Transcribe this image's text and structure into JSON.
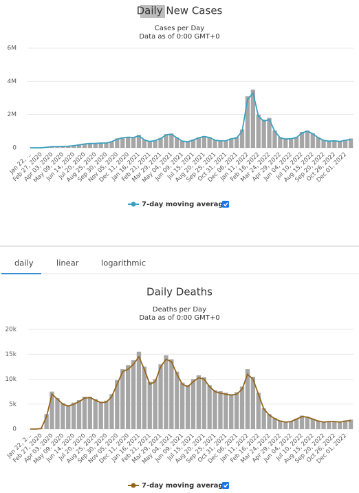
{
  "chart_data": [
    {
      "type": "bar",
      "title": "Daily New Cases",
      "subtitle": "Cases per Day",
      "note": "Data as of 0:00 GMT+0",
      "categories": [
        "Jan 22, ...",
        null,
        "Feb 27, 2020",
        null,
        "Apr 03, 2020",
        null,
        "May 09, 2020",
        null,
        "Jun 14, 2020",
        null,
        "Jul 20, 2020",
        null,
        "Aug 25, 2020",
        null,
        "Sep 30, 2020",
        null,
        "Nov 05, 2020",
        null,
        "Dec 11, 2020",
        null,
        "Jan 16, 2021",
        null,
        "Feb 21, 2021",
        null,
        "Mar 29, 2021",
        null,
        "May 04, 2021",
        null,
        "Jun 09, 2021",
        null,
        "Jul 15, 2021",
        null,
        "Aug 20, 2021",
        null,
        "Sep 25, 2021",
        null,
        "Oct 31, 2021",
        null,
        "Dec 06, 2021",
        null,
        "Jan 11, 2022",
        null,
        "Feb 16, 2022",
        null,
        "Mar 24, 2022",
        null,
        "Apr 29, 2022",
        null,
        "Jun 04, 2022",
        null,
        "Jul 10, 2022",
        null,
        "Aug 15, 2022",
        null,
        "Sep 20, 2022",
        null,
        "Oct 26, 2022",
        null,
        "Dec 01, 2022",
        null
      ],
      "values": [
        0,
        1000,
        3000,
        40000,
        80000,
        85000,
        90000,
        110000,
        140000,
        190000,
        240000,
        270000,
        270000,
        300000,
        300000,
        390000,
        560000,
        630000,
        660000,
        640000,
        780000,
        500000,
        400000,
        460000,
        590000,
        820000,
        860000,
        630000,
        420000,
        390000,
        500000,
        630000,
        700000,
        640000,
        480000,
        440000,
        450000,
        560000,
        640000,
        1100000,
        3100000,
        3500000,
        2000000,
        1700000,
        1800000,
        1050000,
        640000,
        560000,
        580000,
        650000,
        950000,
        1050000,
        880000,
        630000,
        470000,
        420000,
        440000,
        400000,
        480000,
        560000
      ],
      "color": "#a6a6a6",
      "series": [
        {
          "name": "7-day moving average",
          "color": "#3aa1c0",
          "values": [
            0,
            1000,
            2000,
            35000,
            75000,
            80000,
            85000,
            100000,
            130000,
            180000,
            230000,
            260000,
            260000,
            290000,
            290000,
            370000,
            520000,
            600000,
            640000,
            620000,
            720000,
            480000,
            380000,
            440000,
            560000,
            780000,
            820000,
            600000,
            400000,
            370000,
            470000,
            600000,
            680000,
            620000,
            460000,
            420000,
            430000,
            540000,
            600000,
            1000000,
            2900000,
            3300000,
            1900000,
            1600000,
            1700000,
            1000000,
            600000,
            530000,
            550000,
            620000,
            900000,
            1000000,
            850000,
            600000,
            450000,
            400000,
            420000,
            380000,
            460000,
            500000
          ]
        }
      ],
      "ylim": [
        0,
        6000000
      ],
      "yticks": [
        0,
        {
          "value": 2000000,
          "label": "2M"
        },
        {
          "value": 4000000,
          "label": "4M"
        },
        {
          "value": 6000000,
          "label": "6M"
        }
      ],
      "grid": true
    },
    {
      "type": "bar",
      "title": "Daily Deaths",
      "subtitle": "Deaths per Day",
      "note": "Data as of 0:00 GMT+0",
      "categories": [
        "Jan 22, 2...",
        null,
        "Feb 27, 2020",
        null,
        "Apr 03, 2020",
        null,
        "May 09, 2020",
        null,
        "Jun 14, 2020",
        null,
        "Jul 20, 2020",
        null,
        "Aug 25, 2020",
        null,
        "Sep 30, 2020",
        null,
        "Nov 05, 2020",
        null,
        "Dec 11, 2020",
        null,
        "Jan 16, 2021",
        null,
        "Feb 21, 2021",
        null,
        "Mar 29, 2021",
        null,
        "May 04, 2021",
        null,
        "Jun 09, 2021",
        null,
        "Jul 15, 2021",
        null,
        "Aug 20, 2021",
        null,
        "Sep 25, 2021",
        null,
        "Oct 31, 2021",
        null,
        "Dec 06, 2021",
        null,
        "Jan 11, 2022",
        null,
        "Feb 16, 2022",
        null,
        "Mar 24, 2022",
        null,
        "Apr 29, 2022",
        null,
        "Jun 04, 2022",
        null,
        "Jul 10, 2022",
        null,
        "Aug 15, 2022",
        null,
        "Sep 20, 2022",
        null,
        "Oct 26, 2022",
        null,
        "Dec 01, 2022",
        null
      ],
      "values": [
        0,
        0,
        150,
        3000,
        7500,
        6200,
        5200,
        4800,
        5300,
        5800,
        6500,
        6500,
        6000,
        5500,
        5700,
        7000,
        9800,
        12000,
        12800,
        13800,
        15500,
        12500,
        9500,
        10000,
        13000,
        14800,
        14000,
        11500,
        9300,
        8800,
        10000,
        10800,
        10400,
        8800,
        7800,
        7600,
        7300,
        7000,
        7400,
        8500,
        12000,
        10500,
        7300,
        4200,
        3000,
        2200,
        1700,
        1500,
        1600,
        2100,
        2700,
        2500,
        2100,
        1700,
        1500,
        1600,
        1600,
        1500,
        1700,
        1900
      ],
      "color": "#a6a6a6",
      "series": [
        {
          "name": "7-day moving average",
          "color": "#94661a",
          "values": [
            0,
            0,
            100,
            2500,
            7000,
            6000,
            5000,
            4600,
            5000,
            5500,
            6200,
            6300,
            5800,
            5300,
            5400,
            6500,
            9000,
            11500,
            12000,
            13000,
            14500,
            12000,
            9000,
            9500,
            12500,
            14000,
            13500,
            11000,
            9000,
            8500,
            9500,
            10300,
            10000,
            8500,
            7500,
            7200,
            7000,
            6800,
            7000,
            8000,
            11000,
            10000,
            7000,
            4000,
            2800,
            2100,
            1600,
            1400,
            1500,
            2000,
            2500,
            2400,
            2000,
            1600,
            1400,
            1500,
            1500,
            1400,
            1600,
            1700
          ]
        }
      ],
      "ylim": [
        0,
        20000
      ],
      "yticks": [
        0,
        {
          "value": 5000,
          "label": "5k"
        },
        {
          "value": 10000,
          "label": "10k"
        },
        {
          "value": 15000,
          "label": "15k"
        },
        {
          "value": 20000,
          "label": "20k"
        }
      ],
      "grid": true
    }
  ],
  "tabs": [
    "daily",
    "linear",
    "logarithmic"
  ]
}
